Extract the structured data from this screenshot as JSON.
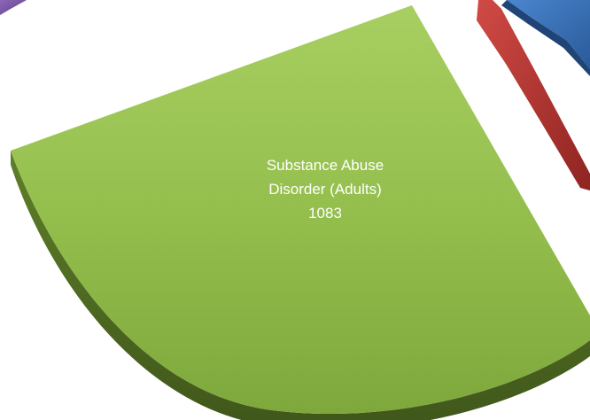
{
  "chart_data": {
    "type": "pie",
    "title": "",
    "slices": [
      {
        "category_lines": [
          "Substance Abuse",
          "Disorder (Adults)"
        ],
        "value": 1083,
        "color": "#8DB748"
      }
    ],
    "partially_visible_slice_colors": [
      "#7E5AA8",
      "#C0393B",
      "#3F78C0"
    ],
    "style": "3D exploded pie, cropped view",
    "legend": "none"
  }
}
